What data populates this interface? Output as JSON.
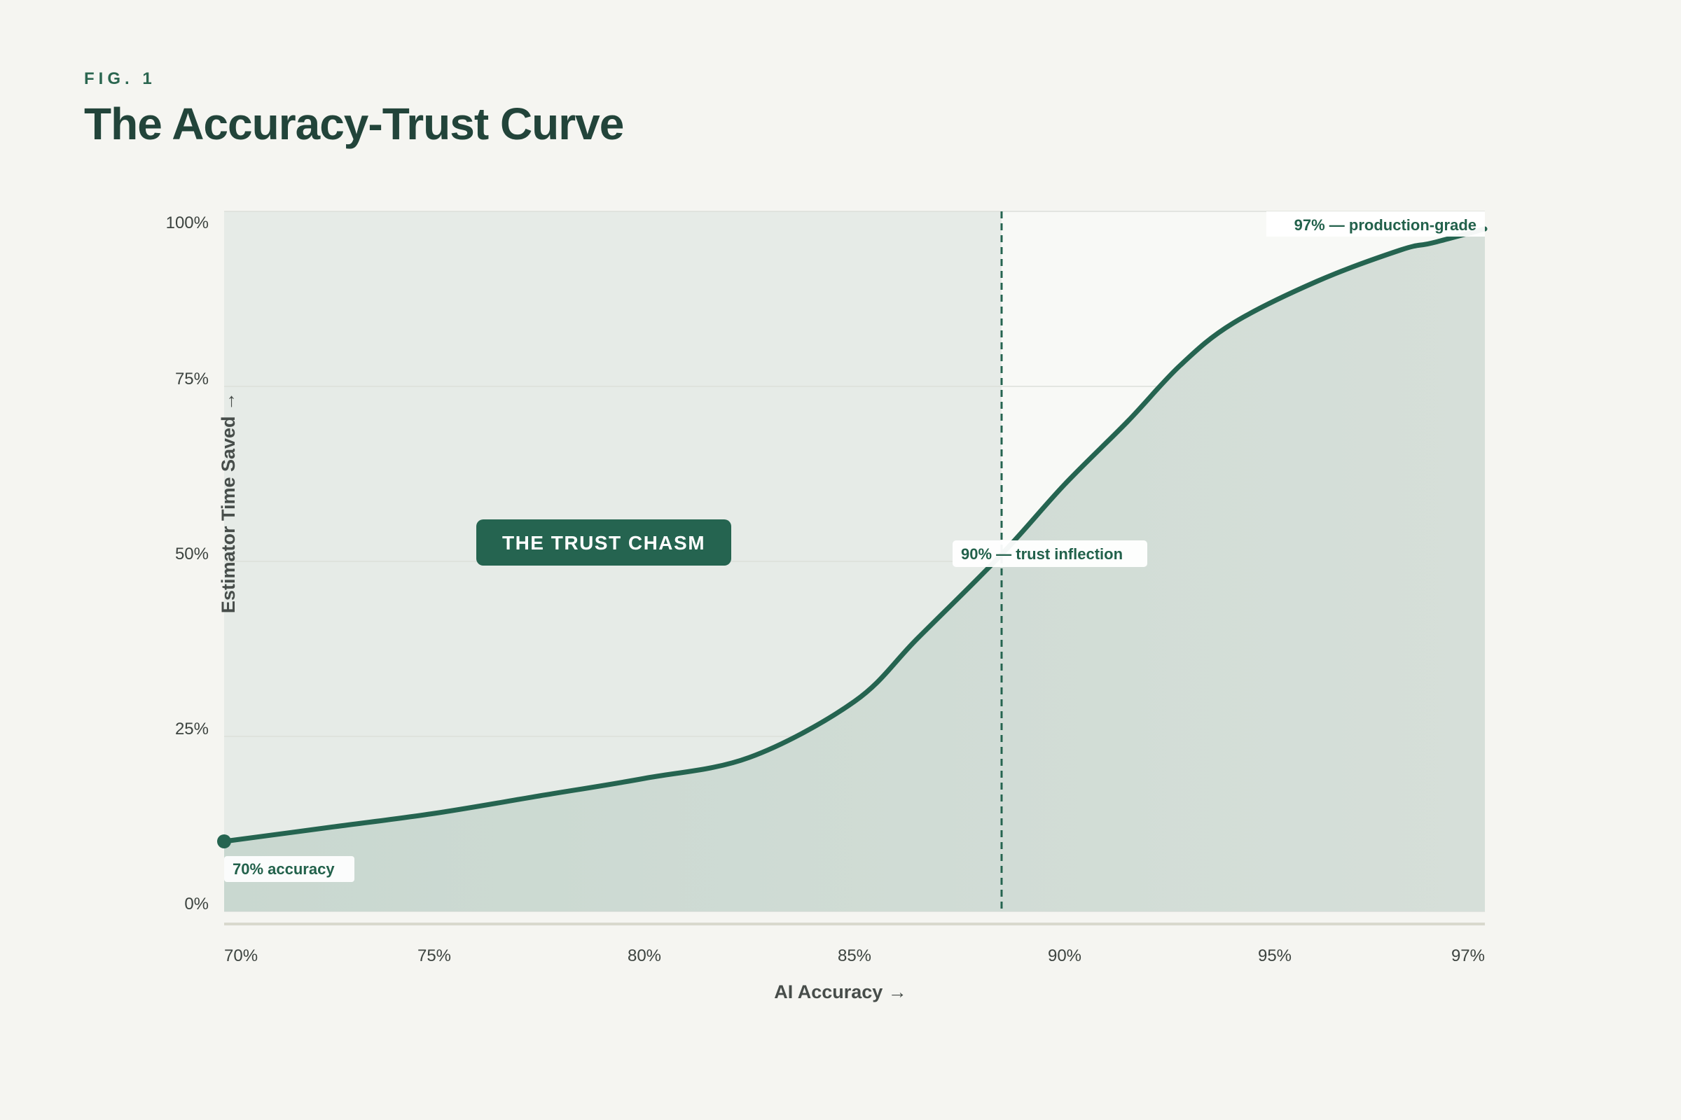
{
  "figure": {
    "label": "FIG. 1",
    "title": "The Accuracy-Trust Curve"
  },
  "chart_data": {
    "type": "area",
    "title": "The Accuracy-Trust Curve",
    "xlabel": "AI Accuracy →",
    "ylabel": "Estimator Time Saved →",
    "x_tick_labels": [
      "70%",
      "75%",
      "80%",
      "85%",
      "90%",
      "95%",
      "97%"
    ],
    "y_ticks": [
      0,
      25,
      50,
      75,
      100
    ],
    "y_tick_labels": [
      "0%",
      "25%",
      "50%",
      "75%",
      "100%"
    ],
    "ylim": [
      0,
      100
    ],
    "grid": true,
    "series": [
      {
        "x": [
          0,
          0.5,
          1,
          1.5,
          2,
          2.5,
          3,
          3.3,
          3.7,
          4,
          4.3,
          4.55,
          4.8,
          5.2,
          5.6,
          5.75,
          6
        ],
        "values": [
          10,
          12,
          14,
          16.5,
          19,
          22,
          30,
          39,
          51,
          61,
          70,
          78,
          84,
          90,
          94.5,
          95.5,
          97.5
        ]
      }
    ],
    "regions": [
      {
        "label": "THE TRUST CHASM",
        "x_from": 0,
        "x_to": 3.7
      }
    ],
    "reference_lines": [
      {
        "x": 3.7,
        "style": "dashed"
      }
    ],
    "annotations": [
      {
        "text": "70% accuracy",
        "x": 0,
        "y": 10,
        "marker": true
      },
      {
        "text": "90% — trust inflection",
        "x": 3.7,
        "y": 51
      },
      {
        "text": "97% — production-grade",
        "x": 6,
        "y": 97.5
      }
    ],
    "colors": {
      "line": "#256450",
      "area": "#c9d8d0",
      "chasm_region": "#e6ebe7",
      "grid": "#dcdfda",
      "label_box": "#256450"
    }
  }
}
